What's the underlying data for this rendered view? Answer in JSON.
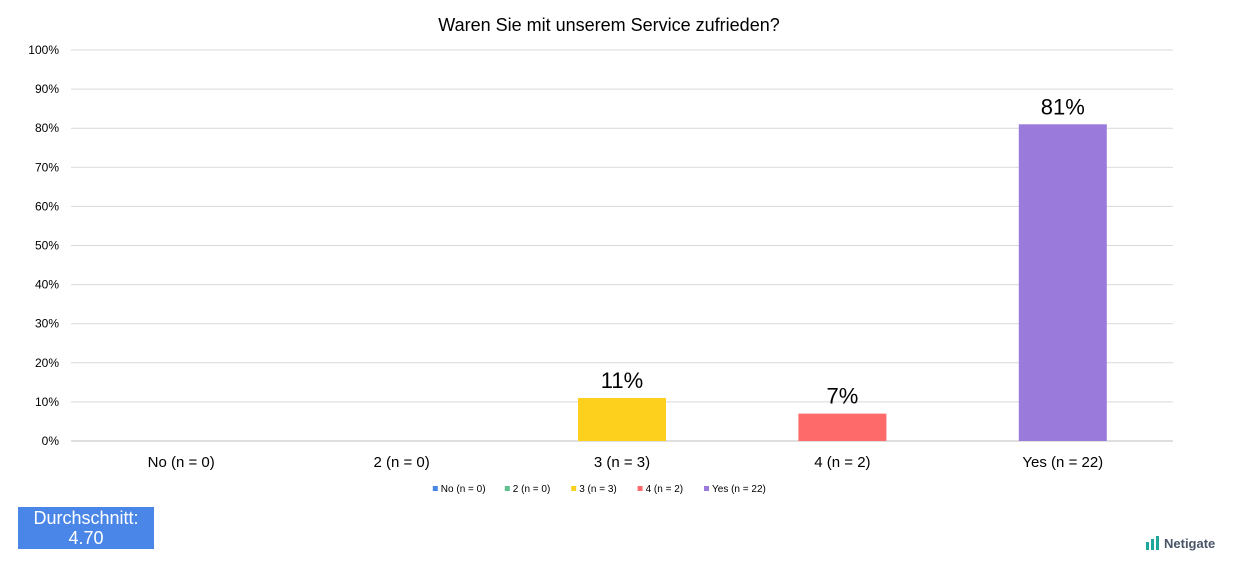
{
  "chart_data": {
    "type": "bar",
    "title": "Waren Sie mit unserem Service zufrieden?",
    "categories": [
      "No (n = 0)",
      "2 (n = 0)",
      "3 (n = 3)",
      "4 (n = 2)",
      "Yes (n = 22)"
    ],
    "values": [
      0,
      0,
      11,
      7,
      81
    ],
    "data_labels": [
      "",
      "",
      "11%",
      "7%",
      "81%"
    ],
    "colors": [
      "#4a86e8",
      "#5fbf8f",
      "#fcd01c",
      "#fe6a6a",
      "#9a7bdb"
    ],
    "ylim": [
      0,
      100
    ],
    "yticks": [
      "0%",
      "10%",
      "20%",
      "30%",
      "40%",
      "50%",
      "60%",
      "70%",
      "80%",
      "90%",
      "100%"
    ],
    "grid": true,
    "legend": {
      "position": "bottom",
      "entries": [
        "No (n = 0)",
        "2 (n = 0)",
        "3 (n = 3)",
        "4 (n = 2)",
        "Yes (n = 22)"
      ]
    }
  },
  "average": {
    "label": "Durchschnitt:",
    "value": "4.70"
  },
  "branding": {
    "name": "Netigate",
    "icon": "netigate-bars-icon",
    "color": "#1ea89a"
  }
}
